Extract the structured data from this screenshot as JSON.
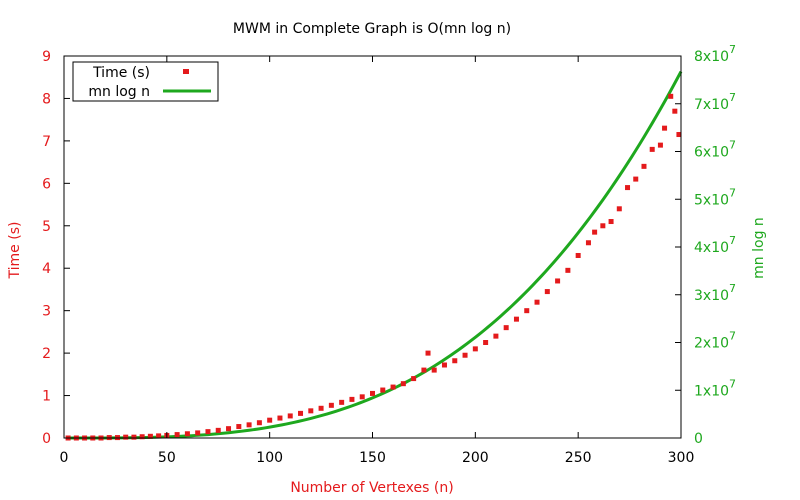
{
  "chart_data": {
    "type": "scatter",
    "title": "MWM in Complete Graph is O(mn log n)",
    "xlabel": "Number of Vertexes (n)",
    "ylabel_left": "Time (s)",
    "ylabel_right": "mn log n",
    "xlim": [
      0,
      300
    ],
    "ylim_left": [
      0,
      9
    ],
    "ylim_right": [
      0,
      80000000
    ],
    "x_ticks": [
      "0",
      "50",
      "100",
      "150",
      "200",
      "250",
      "300"
    ],
    "y_ticks_left": [
      "0",
      "1",
      "2",
      "3",
      "4",
      "5",
      "6",
      "7",
      "8",
      "9"
    ],
    "y_ticks_right": [
      {
        "mantissa": "0",
        "exp": ""
      },
      {
        "mantissa": "1x10",
        "exp": "7"
      },
      {
        "mantissa": "2x10",
        "exp": "7"
      },
      {
        "mantissa": "3x10",
        "exp": "7"
      },
      {
        "mantissa": "4x10",
        "exp": "7"
      },
      {
        "mantissa": "5x10",
        "exp": "7"
      },
      {
        "mantissa": "6x10",
        "exp": "7"
      },
      {
        "mantissa": "7x10",
        "exp": "7"
      },
      {
        "mantissa": "8x10",
        "exp": "7"
      }
    ],
    "legend_position": "top-left",
    "grid": false,
    "series": [
      {
        "name": "Time (s)",
        "axis": "left",
        "style": "points",
        "color": "#e41a1c",
        "x": [
          2,
          6,
          10,
          14,
          18,
          22,
          26,
          30,
          34,
          38,
          42,
          46,
          50,
          55,
          60,
          65,
          70,
          75,
          80,
          85,
          90,
          95,
          100,
          105,
          110,
          115,
          120,
          125,
          130,
          135,
          140,
          145,
          150,
          155,
          160,
          165,
          170,
          175,
          177,
          180,
          185,
          190,
          195,
          200,
          205,
          210,
          215,
          220,
          225,
          230,
          235,
          240,
          245,
          250,
          255,
          258,
          262,
          266,
          270,
          274,
          278,
          282,
          286,
          290,
          292,
          295,
          297,
          299
        ],
        "y": [
          0.0,
          0.0,
          0.0,
          0.0,
          0.0,
          0.01,
          0.01,
          0.02,
          0.02,
          0.03,
          0.04,
          0.05,
          0.06,
          0.08,
          0.1,
          0.12,
          0.15,
          0.18,
          0.22,
          0.27,
          0.31,
          0.36,
          0.42,
          0.47,
          0.52,
          0.58,
          0.64,
          0.7,
          0.77,
          0.84,
          0.91,
          0.97,
          1.05,
          1.13,
          1.2,
          1.28,
          1.4,
          1.6,
          2.0,
          1.6,
          1.72,
          1.82,
          1.95,
          2.1,
          2.25,
          2.4,
          2.6,
          2.8,
          3.0,
          3.2,
          3.45,
          3.7,
          3.95,
          4.3,
          4.6,
          4.85,
          5.0,
          5.1,
          5.4,
          5.9,
          6.1,
          6.4,
          6.8,
          6.9,
          7.3,
          8.05,
          7.7,
          7.15
        ]
      },
      {
        "name": "mn log n",
        "axis": "right",
        "style": "line",
        "color": "#1ea81e",
        "function": "n*(n*(n-1)/2)*log(n)"
      }
    ]
  }
}
